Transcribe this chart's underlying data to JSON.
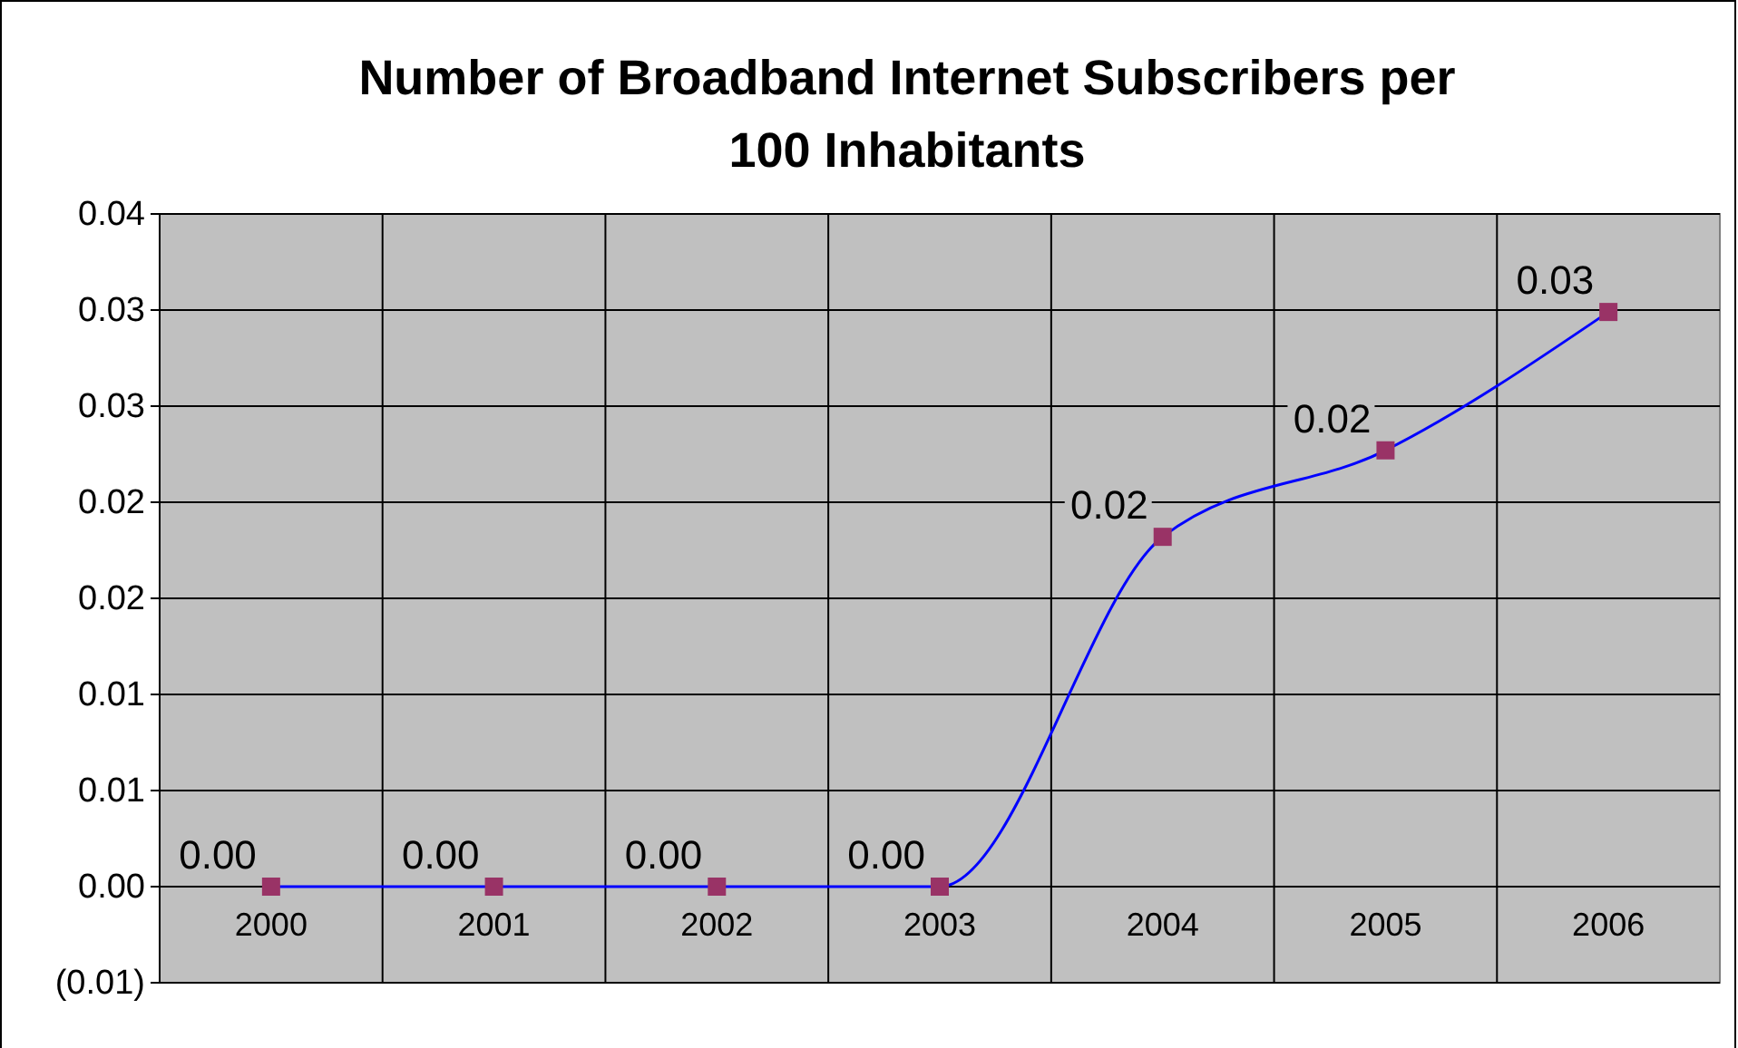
{
  "chart_data": {
    "type": "line",
    "title": "Number of Broadband Internet Subscribers per 100 Inhabitants",
    "categories": [
      "2000",
      "2001",
      "2002",
      "2003",
      "2004",
      "2005",
      "2006"
    ],
    "series": [
      {
        "color": "#0000ff",
        "values": [
          0,
          0,
          0,
          0,
          0.0182,
          0.0227,
          0.0299
        ],
        "value_labels": [
          "0.00",
          "0.00",
          "0.00",
          "0.00",
          "0.02",
          "0.02",
          "0.03"
        ]
      }
    ],
    "ylim": [
      -0.005,
      0.035
    ],
    "yticks": [
      {
        "value": -0.005,
        "label": "(0.01)"
      },
      {
        "value": 0,
        "label": "0.00"
      },
      {
        "value": 0.005,
        "label": "0.01"
      },
      {
        "value": 0.01,
        "label": "0.01"
      },
      {
        "value": 0.015,
        "label": "0.02"
      },
      {
        "value": 0.02,
        "label": "0.02"
      },
      {
        "value": 0.025,
        "label": "0.03"
      },
      {
        "value": 0.03,
        "label": "0.03"
      },
      {
        "value": 0.035,
        "label": "0.04"
      }
    ],
    "grid": true,
    "marker": "square"
  }
}
